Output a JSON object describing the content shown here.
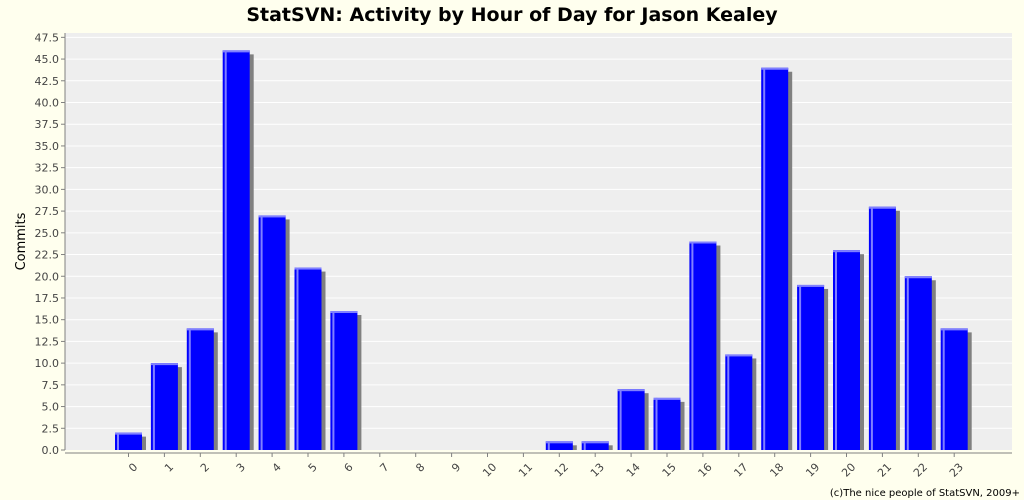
{
  "chart_data": {
    "type": "bar",
    "title": "StatSVN: Activity by Hour of Day for Jason Kealey",
    "xlabel": "",
    "ylabel": "Commits",
    "categories": [
      "0",
      "1",
      "2",
      "3",
      "4",
      "5",
      "6",
      "7",
      "8",
      "9",
      "10",
      "11",
      "12",
      "13",
      "14",
      "15",
      "16",
      "17",
      "18",
      "19",
      "20",
      "21",
      "22",
      "23"
    ],
    "values": [
      2,
      10,
      14,
      46,
      27,
      21,
      16,
      0,
      0,
      0,
      0,
      0,
      1,
      1,
      7,
      6,
      24,
      11,
      44,
      19,
      23,
      28,
      20,
      14
    ],
    "ylim": [
      0,
      48
    ],
    "yticks": [
      "0.0",
      "2.5",
      "5.0",
      "7.5",
      "10.0",
      "12.5",
      "15.0",
      "17.5",
      "20.0",
      "22.5",
      "25.0",
      "27.5",
      "30.0",
      "32.5",
      "35.0",
      "37.5",
      "40.0",
      "42.5",
      "45.0",
      "47.5"
    ],
    "grid": true,
    "legend": "none",
    "colors": {
      "bar": "#0000ff",
      "bar_highlight": "#8080ff",
      "bar_shadow": "#808080",
      "plot_background": "#eeeeee",
      "page_background": "#ffffee",
      "gridline": "#ffffff"
    }
  },
  "footer": "(c)The nice people of StatSVN, 2009+"
}
